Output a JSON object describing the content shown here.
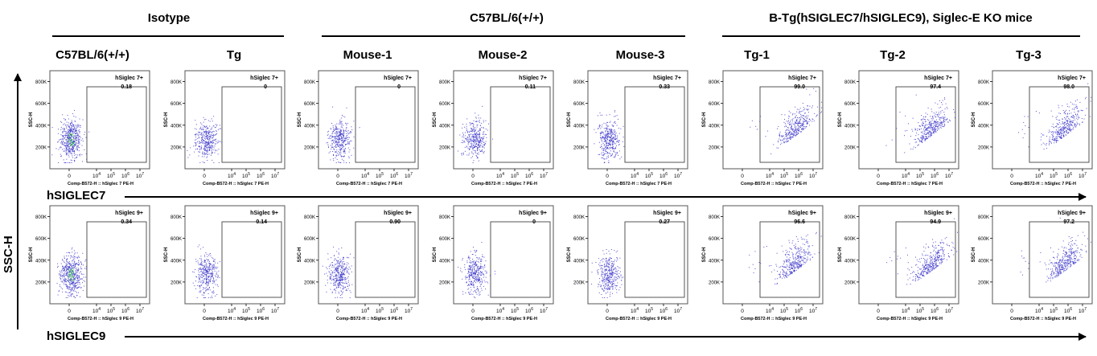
{
  "group_titles": [
    "Isotype",
    "C57BL/6(+/+)",
    "B-Tg(hSIGLEC7/hSIGLEC9), Siglec-E KO mice"
  ],
  "column_headers": [
    "C57BL/6(+/+)",
    "Tg",
    "Mouse-1",
    "Mouse-2",
    "Mouse-3",
    "Tg-1",
    "Tg-2",
    "Tg-3"
  ],
  "y_axis_title": "SSC-H",
  "row_axis_titles": [
    "hSIGLEC7",
    "hSIGLEC9"
  ],
  "colors": {
    "dots": "#3a33c8",
    "dense": "#22aa44",
    "axis": "#000000"
  },
  "chart_data": {
    "type": "scatter",
    "panel_ylabel": "SSC-H",
    "y_ticks": [
      "200K",
      "400K",
      "600K",
      "800K"
    ],
    "x_ticks": [
      "0",
      "10",
      "10",
      "10",
      "10"
    ],
    "x_tick_exponents": [
      "",
      "4",
      "5",
      "6",
      "7"
    ],
    "ylim": [
      0,
      900000
    ],
    "rows": [
      {
        "marker": "hSIGLEC7",
        "gate_label": "hSiglec 7+",
        "xlabel": "Comp-B572-H :: hSiglec 7 PE-H",
        "gate_percent": [
          "0.18",
          "0",
          "0",
          "0.11",
          "0.33",
          "99.0",
          "97.4",
          "98.0"
        ]
      },
      {
        "marker": "hSIGLEC9",
        "gate_label": "hSiglec 9+",
        "xlabel": "Comp-B572-H :: hSiglec 9 PE-H",
        "gate_percent": [
          "0.34",
          "0.14",
          "0.90",
          "0",
          "0.27",
          "96.6",
          "94.9",
          "97.2"
        ]
      }
    ]
  }
}
